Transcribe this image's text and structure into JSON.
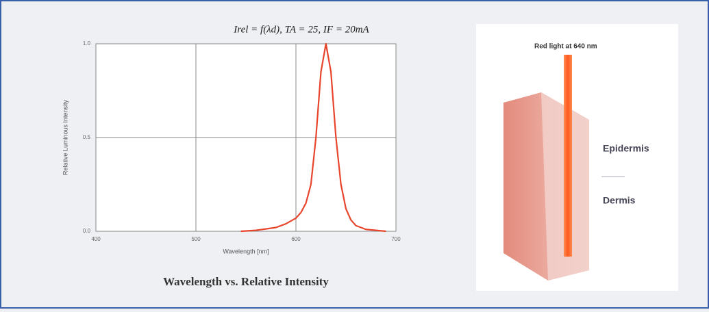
{
  "chart_data": {
    "type": "line",
    "title": "Irel = f(λd), TA = 25, IF = 20mA",
    "caption": "Wavelength vs. Relative Intensity",
    "x_label": "Wavelength [nm]",
    "y_label": "Relative Luminous Intensity",
    "x": [
      545,
      560,
      580,
      590,
      600,
      605,
      610,
      615,
      620,
      625,
      630,
      635,
      640,
      645,
      650,
      655,
      660,
      670,
      680,
      690
    ],
    "series": [
      {
        "name": "Relative Luminous Intensity",
        "color": "#e8452c",
        "values": [
          0,
          0.005,
          0.02,
          0.04,
          0.07,
          0.1,
          0.15,
          0.25,
          0.5,
          0.85,
          1.0,
          0.85,
          0.5,
          0.25,
          0.12,
          0.06,
          0.03,
          0.01,
          0.005,
          0
        ]
      }
    ],
    "xlim": [
      400,
      700
    ],
    "xticks": [
      400,
      500,
      600,
      700
    ],
    "ylim": [
      0,
      1
    ],
    "yticks": [
      {
        "value": 0,
        "label": "0.0"
      },
      0.5,
      {
        "value": 1,
        "label": "1.0"
      }
    ],
    "grid": true
  },
  "illustration": {
    "beam_label": "Red light at 640 nm",
    "layers": [
      "Epidermis",
      "Dermis"
    ]
  }
}
